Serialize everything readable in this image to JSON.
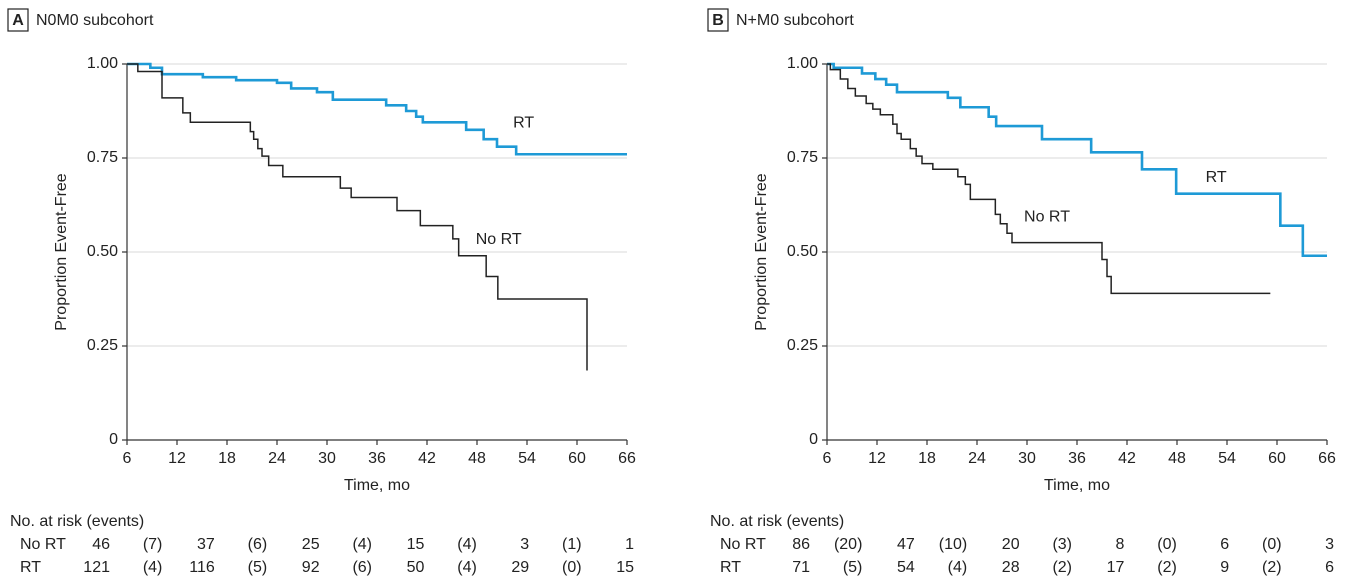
{
  "chart_data": [
    {
      "type": "line",
      "step": true,
      "panel": "A",
      "title": "N0M0 subcohort",
      "xlabel": "Time, mo",
      "ylabel": "Proportion Event-Free",
      "xlim": [
        6,
        66
      ],
      "ylim": [
        0,
        1
      ],
      "xticks": [
        6,
        12,
        18,
        24,
        30,
        36,
        42,
        48,
        54,
        60,
        66
      ],
      "yticks": [
        0,
        0.25,
        {
          "value": 0.5,
          "label": "0.50"
        },
        0.75,
        {
          "value": 1,
          "label": "1.00"
        }
      ],
      "grid": true,
      "series": [
        {
          "name": "RT",
          "color": "#1e9ad6",
          "x": [
            6,
            8.8,
            10.2,
            15.1,
            19.1,
            24,
            25.7,
            28.8,
            30.7,
            37.1,
            39.5,
            40.7,
            41.5,
            46.7,
            48.8,
            50.4,
            52.7,
            66
          ],
          "values": [
            1,
            0.99,
            0.973,
            0.965,
            0.957,
            0.95,
            0.935,
            0.925,
            0.905,
            0.89,
            0.875,
            0.86,
            0.845,
            0.825,
            0.8,
            0.78,
            0.76,
            0.76
          ]
        },
        {
          "name": "No RT",
          "color": "#222222",
          "x": [
            6,
            7.3,
            10.2,
            12.7,
            13.6,
            20.8,
            21.2,
            21.7,
            22.2,
            23,
            24.7,
            31.6,
            32.9,
            38.4,
            41.2,
            45.1,
            45.8,
            49.1,
            50.5,
            61.2
          ],
          "values": [
            1,
            0.98,
            0.91,
            0.87,
            0.845,
            0.82,
            0.8,
            0.775,
            0.755,
            0.73,
            0.7,
            0.67,
            0.645,
            0.61,
            0.57,
            0.535,
            0.49,
            0.435,
            0.375,
            0.185
          ]
        }
      ],
      "at_risk": {
        "title": "No. at risk (events)",
        "rows": [
          {
            "label": "No RT",
            "cells": [
              "46",
              "(7)",
              "37",
              "(6)",
              "25",
              "(4)",
              "15",
              "(4)",
              "3",
              "(1)",
              "1"
            ]
          },
          {
            "label": "RT",
            "cells": [
              "121",
              "(4)",
              "116",
              "(5)",
              "92",
              "(6)",
              "50",
              "(4)",
              "29",
              "(0)",
              "15"
            ]
          }
        ]
      }
    },
    {
      "type": "line",
      "step": true,
      "panel": "B",
      "title": "N+M0 subcohort",
      "xlabel": "Time, mo",
      "ylabel": "Proportion Event-Free",
      "xlim": [
        6,
        66
      ],
      "ylim": [
        0,
        1
      ],
      "xticks": [
        6,
        12,
        18,
        24,
        30,
        36,
        42,
        48,
        54,
        60,
        66
      ],
      "yticks": [
        0,
        0.25,
        {
          "value": 0.5,
          "label": "0.50"
        },
        0.75,
        {
          "value": 1,
          "label": "1.00"
        }
      ],
      "grid": true,
      "series": [
        {
          "name": "RT",
          "color": "#1e9ad6",
          "x": [
            6,
            6.8,
            10.2,
            11.8,
            13.1,
            14.4,
            20.5,
            22,
            25.4,
            26.3,
            31.8,
            37.7,
            43.8,
            47.9,
            60.4,
            63.1,
            66
          ],
          "values": [
            1,
            0.99,
            0.975,
            0.96,
            0.945,
            0.925,
            0.91,
            0.885,
            0.86,
            0.835,
            0.8,
            0.765,
            0.72,
            0.655,
            0.57,
            0.49,
            0.49
          ]
        },
        {
          "name": "No RT",
          "color": "#222222",
          "x": [
            6,
            6.4,
            7.6,
            8.5,
            9.4,
            10.7,
            11.5,
            12.4,
            13.9,
            14.4,
            14.9,
            16,
            16.7,
            17.4,
            18.7,
            21.7,
            22.6,
            23.2,
            26.2,
            26.8,
            27.6,
            28.2,
            39,
            39.6,
            40.1,
            59.2
          ],
          "values": [
            1,
            0.985,
            0.96,
            0.935,
            0.915,
            0.895,
            0.88,
            0.865,
            0.84,
            0.815,
            0.8,
            0.775,
            0.755,
            0.735,
            0.72,
            0.7,
            0.68,
            0.64,
            0.6,
            0.575,
            0.55,
            0.525,
            0.48,
            0.435,
            0.39,
            0.39
          ]
        }
      ],
      "at_risk": {
        "title": "No. at risk (events)",
        "rows": [
          {
            "label": "No RT",
            "cells": [
              "86",
              "(20)",
              "47",
              "(10)",
              "20",
              "(3)",
              "8",
              "(0)",
              "6",
              "(0)",
              "3"
            ]
          },
          {
            "label": "RT",
            "cells": [
              "71",
              "(5)",
              "54",
              "(4)",
              "28",
              "(2)",
              "17",
              "(2)",
              "9",
              "(2)",
              "6"
            ]
          }
        ]
      }
    }
  ]
}
